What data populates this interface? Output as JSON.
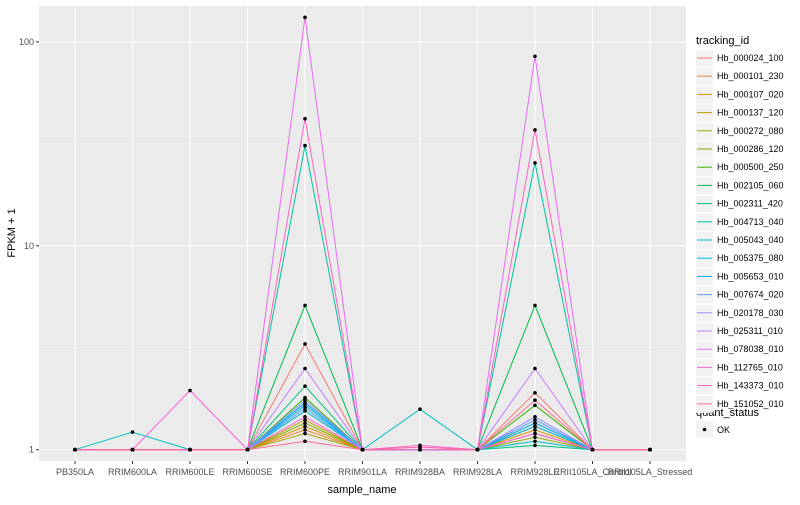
{
  "chart_data": {
    "type": "line",
    "title": "",
    "xlabel": "sample_name",
    "ylabel": "FPKM + 1",
    "yscale": "log10",
    "ylim": [
      0.88,
      150
    ],
    "y_ticks": [
      1,
      10,
      100
    ],
    "y_tick_labels": [
      "1",
      "10",
      "100"
    ],
    "grid": true,
    "legend_position": "right",
    "categories": [
      "PB350LA",
      "RRIM600LA",
      "RRIM600LE",
      "RRIM600SE",
      "RRIM600PE",
      "RRIM901LA",
      "RRIM928BA",
      "RRIM928LA",
      "RRIM928LE",
      "RRII105LA_Control",
      "RRII105LA_Stressed"
    ],
    "legend_title": "tracking_id",
    "series": [
      {
        "name": "Hb_000024_100",
        "color": "#F8766D",
        "values": [
          1,
          1,
          1,
          1,
          3.3,
          1,
          1,
          1,
          1.9,
          1,
          1
        ]
      },
      {
        "name": "Hb_000101_230",
        "color": "#EA8331",
        "values": [
          1,
          1,
          1,
          1,
          1.25,
          1,
          1,
          1,
          1.2,
          1,
          1
        ]
      },
      {
        "name": "Hb_000107_020",
        "color": "#D89000",
        "values": [
          1,
          1,
          1,
          1,
          1.3,
          1,
          1,
          1,
          1.25,
          1,
          1
        ]
      },
      {
        "name": "Hb_000137_120",
        "color": "#C09B00",
        "values": [
          1,
          1,
          1,
          1,
          1.4,
          1,
          1,
          1,
          1.3,
          1,
          1
        ]
      },
      {
        "name": "Hb_000272_080",
        "color": "#A3A500",
        "values": [
          1,
          1,
          1,
          1,
          1.2,
          1,
          1,
          1,
          1.15,
          1,
          1
        ]
      },
      {
        "name": "Hb_000286_120",
        "color": "#7CAE00",
        "values": [
          1,
          1,
          1,
          1,
          1.35,
          1,
          1,
          1,
          1.35,
          1,
          1
        ]
      },
      {
        "name": "Hb_000500_250",
        "color": "#39B600",
        "values": [
          1,
          1,
          1,
          1,
          1.8,
          1,
          1,
          1,
          1.65,
          1,
          1
        ]
      },
      {
        "name": "Hb_002105_060",
        "color": "#00BB4E",
        "values": [
          1,
          1,
          1,
          1,
          5.1,
          1,
          1,
          1,
          5.1,
          1,
          1
        ]
      },
      {
        "name": "Hb_002311_420",
        "color": "#00BF7D",
        "values": [
          1,
          1,
          1,
          1,
          2.05,
          1,
          1,
          1,
          1.05,
          1,
          1
        ]
      },
      {
        "name": "Hb_004713_040",
        "color": "#00C1A3",
        "values": [
          1,
          1,
          1,
          1,
          31,
          1,
          1,
          1,
          25.5,
          1,
          1
        ]
      },
      {
        "name": "Hb_005043_040",
        "color": "#00BFC4",
        "values": [
          1,
          1.22,
          1,
          1,
          1.55,
          1,
          1.58,
          1,
          1.1,
          1,
          1
        ]
      },
      {
        "name": "Hb_005375_080",
        "color": "#00B8E7",
        "values": [
          1,
          1,
          1,
          1,
          1.65,
          1,
          1,
          1,
          1.3,
          1,
          1
        ]
      },
      {
        "name": "Hb_005653_010",
        "color": "#00A9FF",
        "values": [
          1,
          1,
          1,
          1,
          1.7,
          1,
          1,
          1,
          1.35,
          1,
          1
        ]
      },
      {
        "name": "Hb_007674_020",
        "color": "#619CFF",
        "values": [
          1,
          1,
          1,
          1,
          1.6,
          1,
          1,
          1,
          1.4,
          1,
          1
        ]
      },
      {
        "name": "Hb_020178_030",
        "color": "#9590FF",
        "values": [
          1,
          1,
          1,
          1,
          1.75,
          1,
          1,
          1,
          1.45,
          1,
          1
        ]
      },
      {
        "name": "Hb_025311_010",
        "color": "#C77CFF",
        "values": [
          1,
          1,
          1,
          1,
          2.5,
          1,
          1,
          1,
          2.5,
          1,
          1
        ]
      },
      {
        "name": "Hb_078038_010",
        "color": "#E76BF3",
        "values": [
          1,
          1,
          1,
          1,
          132,
          1,
          1,
          1,
          85,
          1,
          1
        ]
      },
      {
        "name": "Hb_112765_010",
        "color": "#FA62DB",
        "values": [
          1,
          1,
          1.95,
          1,
          1.45,
          1,
          1.05,
          1,
          1.2,
          1,
          1
        ]
      },
      {
        "name": "Hb_143373_010",
        "color": "#FF62BC",
        "values": [
          1,
          1,
          1,
          1,
          42,
          1,
          1,
          1,
          37,
          1,
          1
        ]
      },
      {
        "name": "Hb_151052_010",
        "color": "#FF6C91",
        "values": [
          1,
          1,
          1,
          1,
          1.1,
          1,
          1.03,
          1,
          1.75,
          1,
          1
        ]
      }
    ],
    "shape_legend": {
      "title": "quant_status",
      "entries": [
        {
          "label": "OK",
          "marker": "filled-circle",
          "color": "#000000"
        }
      ]
    }
  }
}
